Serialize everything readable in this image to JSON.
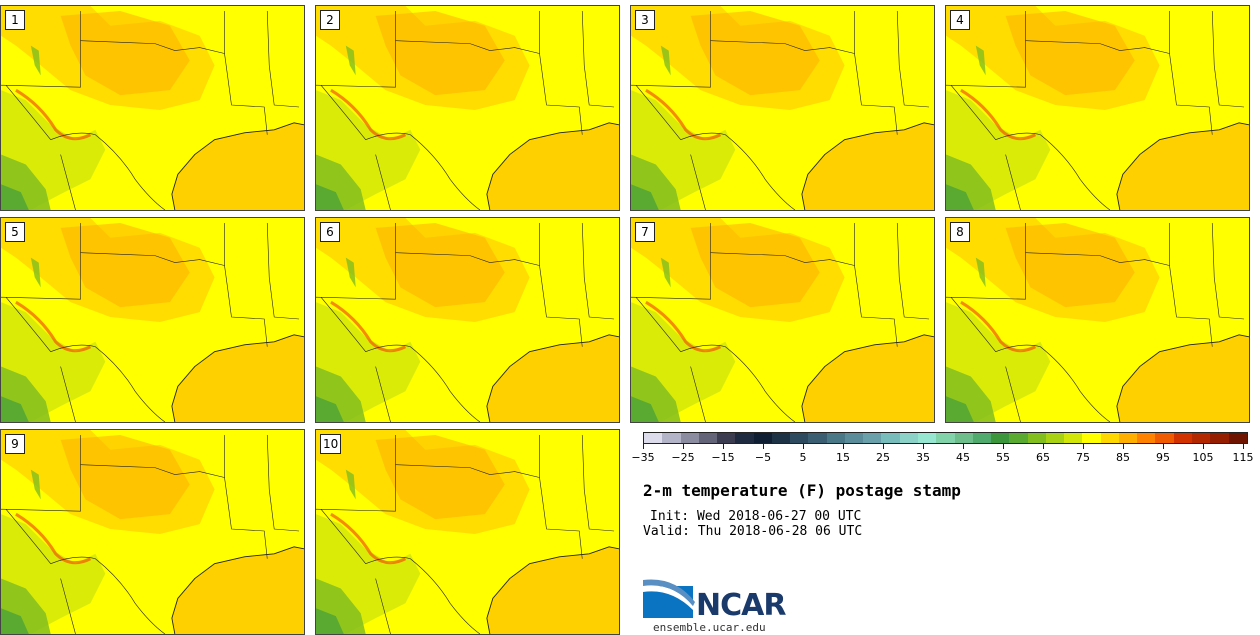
{
  "panels": [
    {
      "label": "1"
    },
    {
      "label": "2"
    },
    {
      "label": "3"
    },
    {
      "label": "4"
    },
    {
      "label": "5"
    },
    {
      "label": "6"
    },
    {
      "label": "7"
    },
    {
      "label": "8"
    },
    {
      "label": "9"
    },
    {
      "label": "10"
    }
  ],
  "colorbar": {
    "colors": [
      "#dcdcec",
      "#b4b4c8",
      "#8c8ca0",
      "#646478",
      "#3c3c50",
      "#1e2a40",
      "#0f1e32",
      "#1e3246",
      "#2d4a5e",
      "#3c5e72",
      "#4b7886",
      "#5a8c9a",
      "#6aa0aa",
      "#78bcbc",
      "#8cd2c8",
      "#96e6d2",
      "#82d2aa",
      "#6ebe8c",
      "#50aa6e",
      "#3c963c",
      "#5aaa32",
      "#82be1e",
      "#aad214",
      "#d2e60a",
      "#ffff00",
      "#ffd700",
      "#ffaf00",
      "#ff8200",
      "#f05a00",
      "#d23200",
      "#b42800",
      "#961e00",
      "#6e1400"
    ],
    "tick_labels": [
      "−35",
      "−25",
      "−15",
      "−5",
      "5",
      "15",
      "25",
      "35",
      "45",
      "55",
      "65",
      "75",
      "85",
      "95",
      "105",
      "115"
    ]
  },
  "title": "2-m temperature (F) postage stamp",
  "init_text": "Init: Wed 2018-06-27 00 UTC",
  "valid_text": "Valid: Thu 2018-06-28 06 UTC",
  "logo_text": "NCAR",
  "url_text": "ensemble.ucar.edu"
}
